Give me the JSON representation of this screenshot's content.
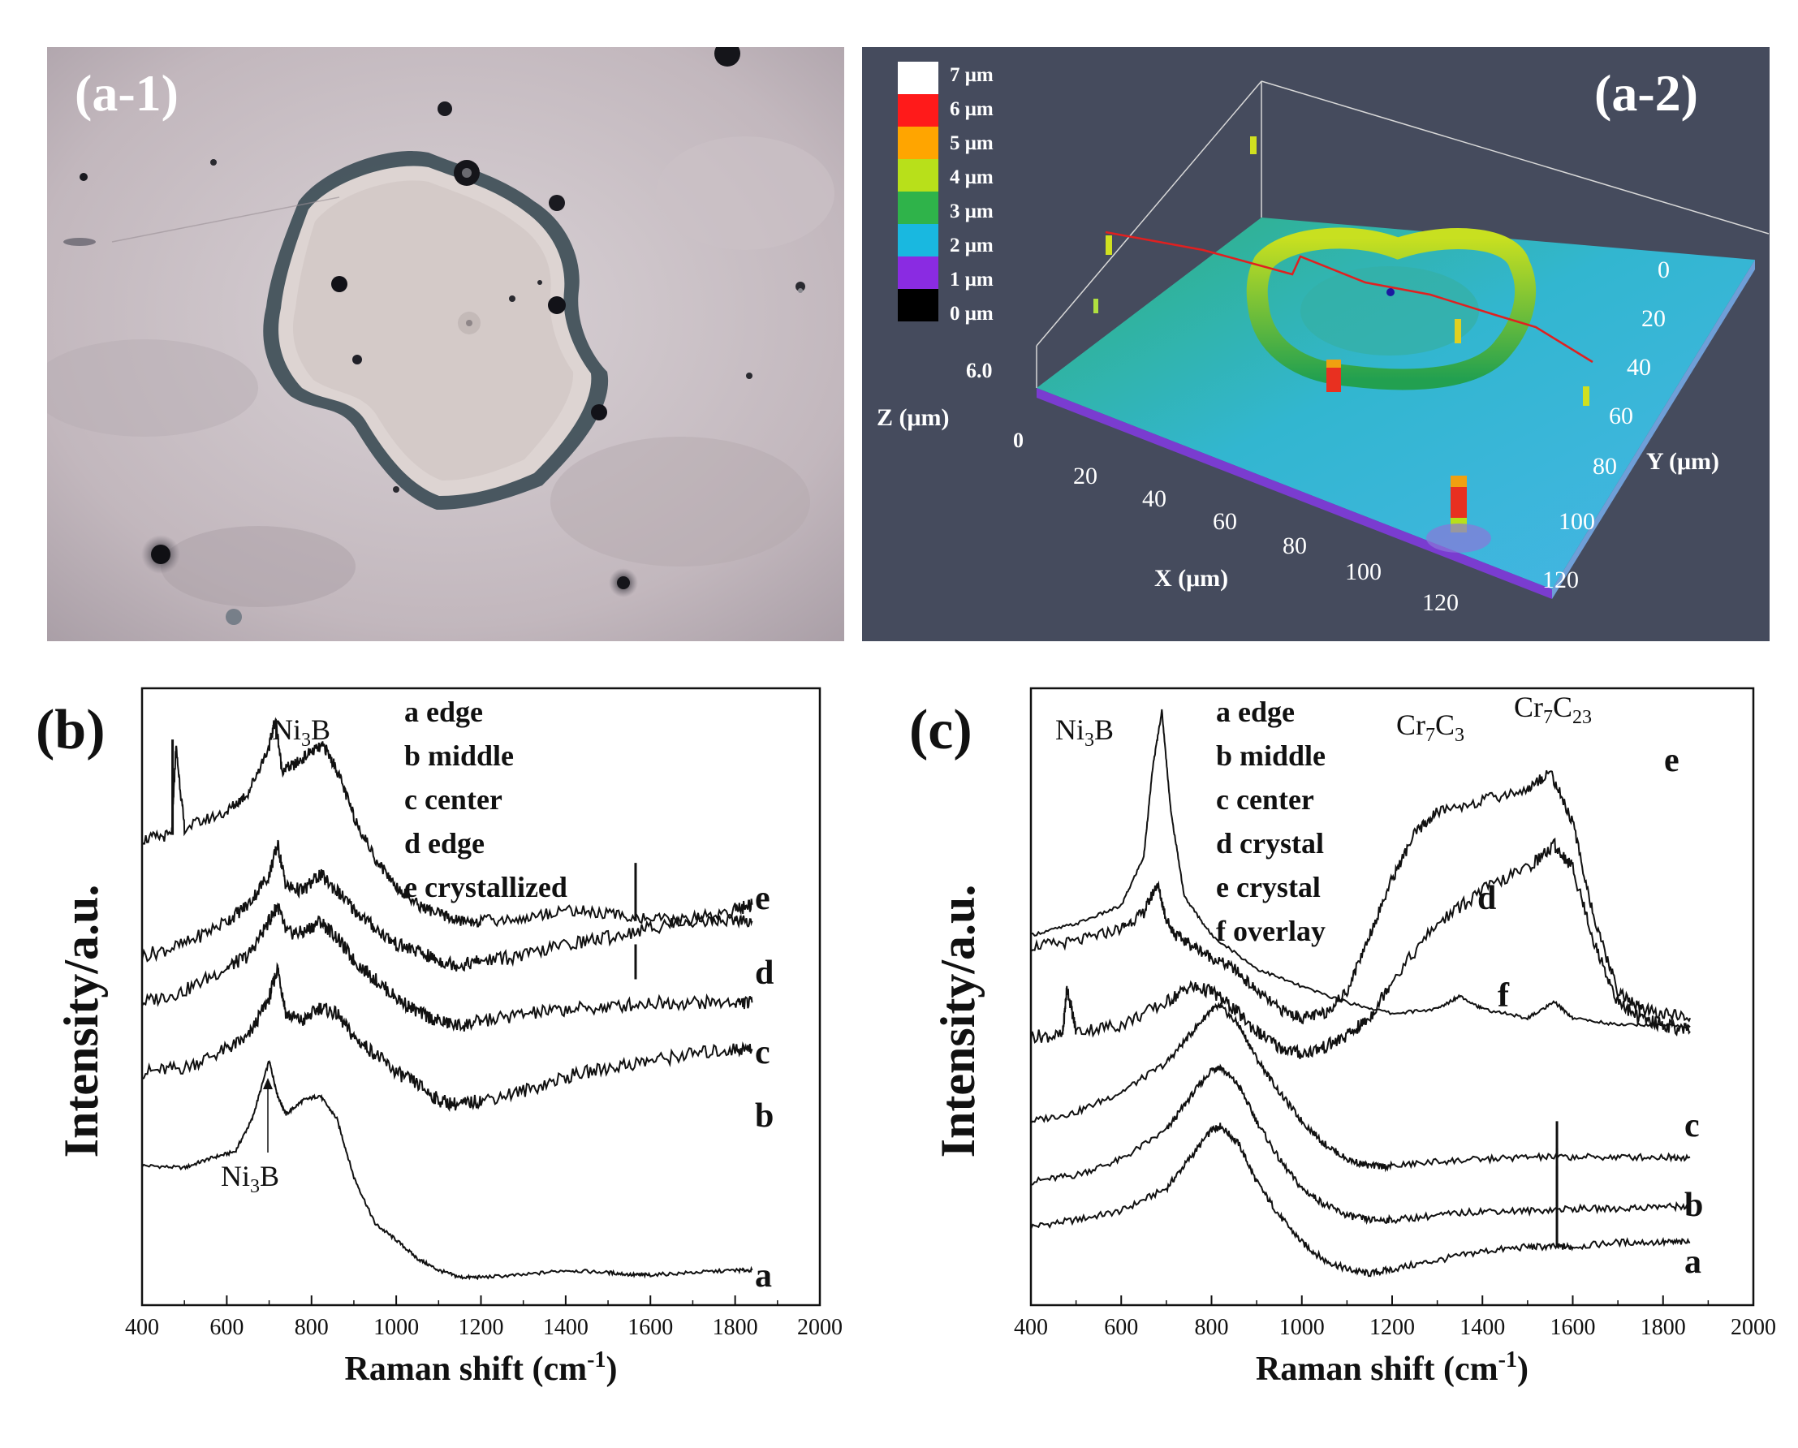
{
  "figure": {
    "panel_a1": {
      "label": "(a-1)"
    },
    "panel_a2": {
      "label": "(a-2)",
      "legend": [
        {
          "text": "7 μm",
          "color": "#ffffff"
        },
        {
          "text": "6 μm",
          "color": "#ff1a1a"
        },
        {
          "text": "5 μm",
          "color": "#ffa500"
        },
        {
          "text": "4 μm",
          "color": "#b8e01a"
        },
        {
          "text": "3 μm",
          "color": "#2fb34a"
        },
        {
          "text": "2 μm",
          "color": "#19b8e0"
        },
        {
          "text": "1 μm",
          "color": "#8a2be2"
        },
        {
          "text": "0 μm",
          "color": "#000000"
        }
      ],
      "z_axis": {
        "label": "Z (μm)",
        "ticks": [
          "6.0",
          "0"
        ]
      },
      "x_axis": {
        "label": "X (μm)",
        "ticks": [
          "20",
          "40",
          "60",
          "80",
          "100",
          "120"
        ]
      },
      "y_axis": {
        "label": "Y (μm)",
        "ticks": [
          "0",
          "20",
          "40",
          "60",
          "80",
          "100",
          "120"
        ]
      }
    },
    "panel_b": {
      "label": "(b)",
      "peak_label_top_main": "Ni",
      "peak_label_top_sub": "3",
      "peak_label_top_end": "B",
      "peak_label_bottom_main": "Ni",
      "peak_label_bottom_sub": "3",
      "peak_label_bottom_end": "B",
      "legend": [
        "a edge",
        "b middle",
        "c center",
        "d edge",
        "e crystallized"
      ]
    },
    "panel_c": {
      "label": "(c)",
      "peak_label_ni3b_main": "Ni",
      "peak_label_ni3b_sub": "3",
      "peak_label_ni3b_end": "B",
      "peak_label_cr7c3": {
        "a": "Cr",
        "b": "7",
        "c": "C",
        "d": "3"
      },
      "peak_label_cr7c23": {
        "a": "Cr",
        "b": "7",
        "c": "C",
        "d": "23"
      },
      "legend": [
        "a edge",
        "b middle",
        "c center",
        "d crystal",
        "e crystal",
        "f overlay"
      ]
    }
  },
  "chart_data": [
    {
      "type": "line",
      "panel": "(b)",
      "xlabel": "Raman shift (cm-1)",
      "ylabel": "Intensity/a.u.",
      "xlim": [
        400,
        2000
      ],
      "xticks": [
        400,
        600,
        800,
        1000,
        1200,
        1400,
        1600,
        1800,
        2000
      ],
      "series": [
        {
          "name": "a",
          "x": [
            400,
            500,
            560,
            620,
            660,
            700,
            720,
            740,
            780,
            820,
            860,
            900,
            950,
            1000,
            1050,
            1100,
            1150,
            1200,
            1300,
            1400,
            1500,
            1560,
            1600,
            1700,
            1800,
            1840
          ],
          "y": [
            0.5,
            0.49,
            0.53,
            0.56,
            0.7,
            0.95,
            0.8,
            0.72,
            0.78,
            0.8,
            0.7,
            0.45,
            0.25,
            0.18,
            0.1,
            0.05,
            0.02,
            0.02,
            0.03,
            0.05,
            0.04,
            0.03,
            0.03,
            0.04,
            0.05,
            0.05
          ]
        },
        {
          "name": "b",
          "x": [
            400,
            500,
            600,
            650,
            700,
            720,
            740,
            780,
            820,
            860,
            900,
            950,
            1000,
            1050,
            1100,
            1150,
            1200,
            1300,
            1400,
            1500,
            1600,
            1700,
            1800,
            1840
          ],
          "y": [
            0.9,
            0.92,
            1.0,
            1.05,
            1.22,
            1.35,
            1.15,
            1.12,
            1.18,
            1.15,
            1.05,
            0.98,
            0.9,
            0.85,
            0.78,
            0.76,
            0.78,
            0.82,
            0.88,
            0.92,
            0.95,
            0.98,
            1.0,
            1.0
          ]
        },
        {
          "name": "c",
          "x": [
            400,
            500,
            600,
            650,
            700,
            720,
            740,
            780,
            820,
            860,
            900,
            950,
            1000,
            1050,
            1100,
            1150,
            1200,
            1300,
            1400,
            1500,
            1600,
            1700,
            1800,
            1840
          ],
          "y": [
            1.2,
            1.25,
            1.35,
            1.4,
            1.55,
            1.62,
            1.5,
            1.5,
            1.55,
            1.48,
            1.38,
            1.3,
            1.22,
            1.16,
            1.12,
            1.1,
            1.12,
            1.15,
            1.17,
            1.18,
            1.2,
            1.2,
            1.2,
            1.2
          ]
        },
        {
          "name": "d",
          "x": [
            400,
            500,
            600,
            650,
            700,
            720,
            740,
            780,
            820,
            860,
            900,
            950,
            1000,
            1050,
            1100,
            1150,
            1200,
            1300,
            1400,
            1500,
            1600,
            1700,
            1800,
            1840
          ],
          "y": [
            1.4,
            1.45,
            1.55,
            1.62,
            1.75,
            1.88,
            1.7,
            1.68,
            1.75,
            1.68,
            1.6,
            1.52,
            1.45,
            1.42,
            1.38,
            1.36,
            1.38,
            1.4,
            1.45,
            1.48,
            1.52,
            1.56,
            1.6,
            1.62
          ]
        },
        {
          "name": "e",
          "x": [
            400,
            470,
            480,
            500,
            600,
            650,
            700,
            715,
            730,
            760,
            800,
            830,
            860,
            900,
            950,
            1000,
            1050,
            1100,
            1150,
            1200,
            1300,
            1400,
            1500,
            1600,
            1700,
            1800,
            1840
          ],
          "y": [
            1.9,
            1.92,
            2.3,
            1.95,
            2.02,
            2.1,
            2.3,
            2.42,
            2.2,
            2.22,
            2.28,
            2.3,
            2.2,
            2.0,
            1.82,
            1.7,
            1.62,
            1.58,
            1.55,
            1.55,
            1.56,
            1.6,
            1.58,
            1.56,
            1.55,
            1.55,
            1.55
          ]
        }
      ],
      "series_labels": [
        "e",
        "d",
        "c",
        "b",
        "a"
      ]
    },
    {
      "type": "line",
      "panel": "(c)",
      "xlabel": "Raman shift (cm-1)",
      "ylabel": "Intensity/a.u.",
      "xlim": [
        400,
        2000
      ],
      "xticks": [
        400,
        600,
        800,
        1000,
        1200,
        1400,
        1600,
        1800,
        2000
      ],
      "series": [
        {
          "name": "a",
          "x": [
            400,
            500,
            600,
            700,
            750,
            800,
            820,
            860,
            900,
            950,
            1000,
            1050,
            1100,
            1150,
            1200,
            1300,
            1400,
            1500,
            1565,
            1600,
            1700,
            1800,
            1860
          ],
          "y": [
            0.25,
            0.28,
            0.32,
            0.42,
            0.55,
            0.68,
            0.7,
            0.62,
            0.45,
            0.3,
            0.18,
            0.1,
            0.06,
            0.04,
            0.06,
            0.1,
            0.14,
            0.16,
            0.16,
            0.16,
            0.18,
            0.18,
            0.18
          ]
        },
        {
          "name": "b",
          "x": [
            400,
            500,
            600,
            700,
            750,
            800,
            820,
            860,
            900,
            950,
            1000,
            1050,
            1100,
            1150,
            1200,
            1300,
            1400,
            1500,
            1600,
            1700,
            1800,
            1860
          ],
          "y": [
            0.45,
            0.48,
            0.55,
            0.68,
            0.82,
            0.95,
            0.96,
            0.88,
            0.72,
            0.55,
            0.42,
            0.35,
            0.3,
            0.28,
            0.28,
            0.3,
            0.32,
            0.32,
            0.33,
            0.33,
            0.34,
            0.34
          ]
        },
        {
          "name": "c",
          "x": [
            400,
            500,
            600,
            700,
            750,
            800,
            820,
            860,
            900,
            950,
            1000,
            1050,
            1100,
            1150,
            1200,
            1300,
            1400,
            1500,
            1600,
            1700,
            1800,
            1860
          ],
          "y": [
            0.72,
            0.76,
            0.85,
            0.98,
            1.1,
            1.22,
            1.23,
            1.15,
            1.0,
            0.85,
            0.72,
            0.62,
            0.55,
            0.52,
            0.52,
            0.54,
            0.55,
            0.56,
            0.56,
            0.56,
            0.56,
            0.56
          ]
        },
        {
          "name": "d",
          "x": [
            400,
            470,
            480,
            500,
            600,
            700,
            750,
            800,
            850,
            900,
            950,
            1000,
            1050,
            1100,
            1150,
            1200,
            1300,
            1400,
            1500,
            1560,
            1600,
            1650,
            1700,
            1750,
            1800,
            1860
          ],
          "y": [
            1.1,
            1.1,
            1.32,
            1.12,
            1.15,
            1.25,
            1.32,
            1.3,
            1.22,
            1.12,
            1.05,
            1.02,
            1.05,
            1.1,
            1.18,
            1.35,
            1.6,
            1.75,
            1.85,
            1.95,
            1.85,
            1.5,
            1.25,
            1.18,
            1.15,
            1.12
          ]
        },
        {
          "name": "e",
          "x": [
            400,
            500,
            600,
            650,
            680,
            700,
            720,
            760,
            800,
            850,
            900,
            950,
            1000,
            1050,
            1100,
            1150,
            1200,
            1250,
            1300,
            1400,
            1500,
            1550,
            1600,
            1650,
            1700,
            1750,
            1800,
            1860
          ],
          "y": [
            1.5,
            1.52,
            1.58,
            1.65,
            1.78,
            1.62,
            1.55,
            1.5,
            1.45,
            1.4,
            1.3,
            1.22,
            1.18,
            1.2,
            1.3,
            1.55,
            1.8,
            2.0,
            2.1,
            2.15,
            2.2,
            2.28,
            2.05,
            1.6,
            1.3,
            1.22,
            1.2,
            1.18
          ]
        },
        {
          "name": "f",
          "x": [
            400,
            500,
            600,
            650,
            670,
            690,
            710,
            740,
            800,
            900,
            1000,
            1100,
            1200,
            1300,
            1350,
            1400,
            1500,
            1560,
            1600,
            1700,
            1800,
            1860
          ],
          "y": [
            1.55,
            1.6,
            1.68,
            1.9,
            2.3,
            2.55,
            2.1,
            1.72,
            1.55,
            1.4,
            1.32,
            1.25,
            1.2,
            1.22,
            1.28,
            1.22,
            1.18,
            1.25,
            1.18,
            1.15,
            1.15,
            1.14
          ]
        }
      ],
      "series_labels": [
        "e",
        "d",
        "f",
        "c",
        "b",
        "a"
      ]
    }
  ]
}
